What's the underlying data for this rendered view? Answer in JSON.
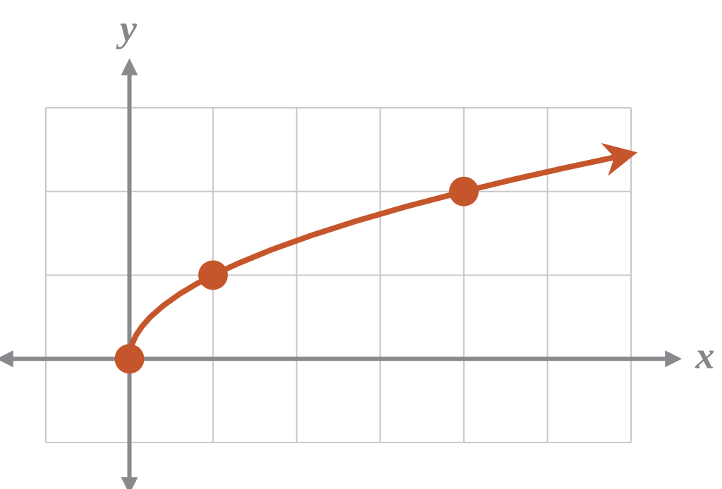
{
  "chart_data": {
    "type": "line",
    "x_label": "x",
    "y_label": "y",
    "xlim": [
      -1,
      6
    ],
    "ylim": [
      -1,
      3
    ],
    "xticks": [
      -1,
      0,
      1,
      2,
      3,
      4,
      5,
      6
    ],
    "yticks": [
      -1,
      0,
      1,
      2,
      3
    ],
    "grid": true,
    "color": "#c5562b",
    "curve": {
      "x": [
        0,
        0.03,
        0.08,
        0.15,
        0.25,
        0.4,
        0.6,
        0.8,
        1,
        1.3,
        1.7,
        2.2,
        2.7,
        3.3,
        4,
        4.6,
        5.2,
        5.8
      ],
      "y": [
        0,
        0.173,
        0.283,
        0.387,
        0.5,
        0.632,
        0.775,
        0.894,
        1,
        1.14,
        1.304,
        1.483,
        1.643,
        1.817,
        2,
        2.145,
        2.28,
        2.408
      ]
    },
    "points": {
      "x": [
        0,
        1,
        4
      ],
      "y": [
        0,
        1,
        2
      ]
    }
  }
}
